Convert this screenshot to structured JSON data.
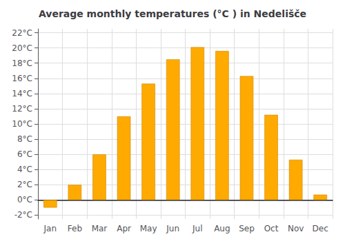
{
  "chart_data": {
    "type": "bar",
    "title": "Average monthly temperatures (°C ) in Nedelišče",
    "categories": [
      "Jan",
      "Feb",
      "Mar",
      "Apr",
      "May",
      "Jun",
      "Jul",
      "Aug",
      "Sep",
      "Oct",
      "Nov",
      "Dec"
    ],
    "values": [
      -1.0,
      2.0,
      6.0,
      11.0,
      15.3,
      18.5,
      20.1,
      19.6,
      16.3,
      11.2,
      5.3,
      0.7
    ],
    "color": "#FFAA00",
    "ylim": [
      -2.5,
      22.5
    ],
    "yticks": [
      {
        "value": -2,
        "label": "-2°C"
      },
      {
        "value": 0,
        "label": "0°C"
      },
      {
        "value": 2,
        "label": "2°C"
      },
      {
        "value": 4,
        "label": "4°C"
      },
      {
        "value": 6,
        "label": "6°C"
      },
      {
        "value": 8,
        "label": "8°C"
      },
      {
        "value": 10,
        "label": "10°C"
      },
      {
        "value": 12,
        "label": "12°C"
      },
      {
        "value": 14,
        "label": "14°C"
      },
      {
        "value": 16,
        "label": "16°C"
      },
      {
        "value": 18,
        "label": "18°C"
      },
      {
        "value": 20,
        "label": "20°C"
      },
      {
        "value": 22,
        "label": "22°C"
      }
    ],
    "grid": true
  }
}
